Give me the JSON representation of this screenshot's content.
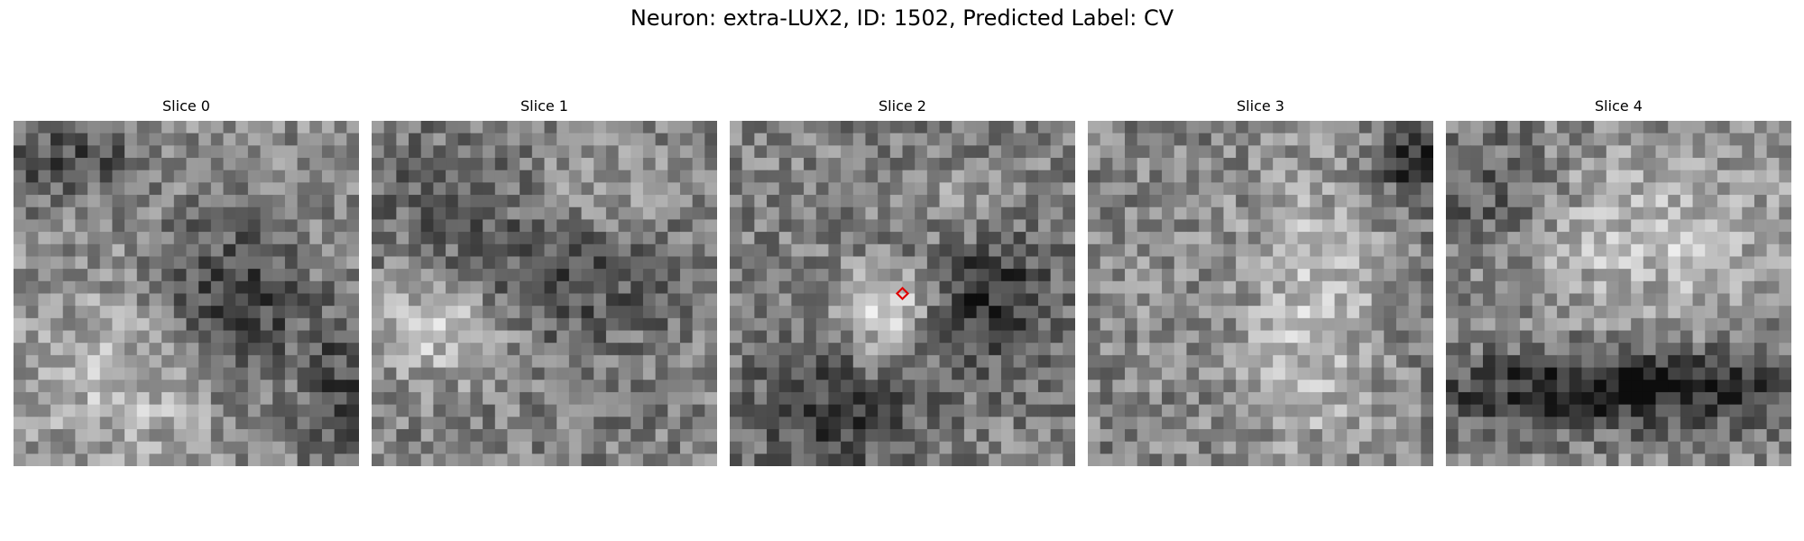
{
  "figure": {
    "title": "Neuron: extra-LUX2, ID: 1502, Predicted Label: CV"
  },
  "slices": [
    {
      "title": "Slice 0"
    },
    {
      "title": "Slice 1"
    },
    {
      "title": "Slice 2"
    },
    {
      "title": "Slice 3"
    },
    {
      "title": "Slice 4"
    }
  ],
  "marker": {
    "slice": 2,
    "color": "#e00000",
    "shape": "diamond"
  },
  "image": {
    "colormap": "grayscale",
    "grid_cells": 28
  }
}
